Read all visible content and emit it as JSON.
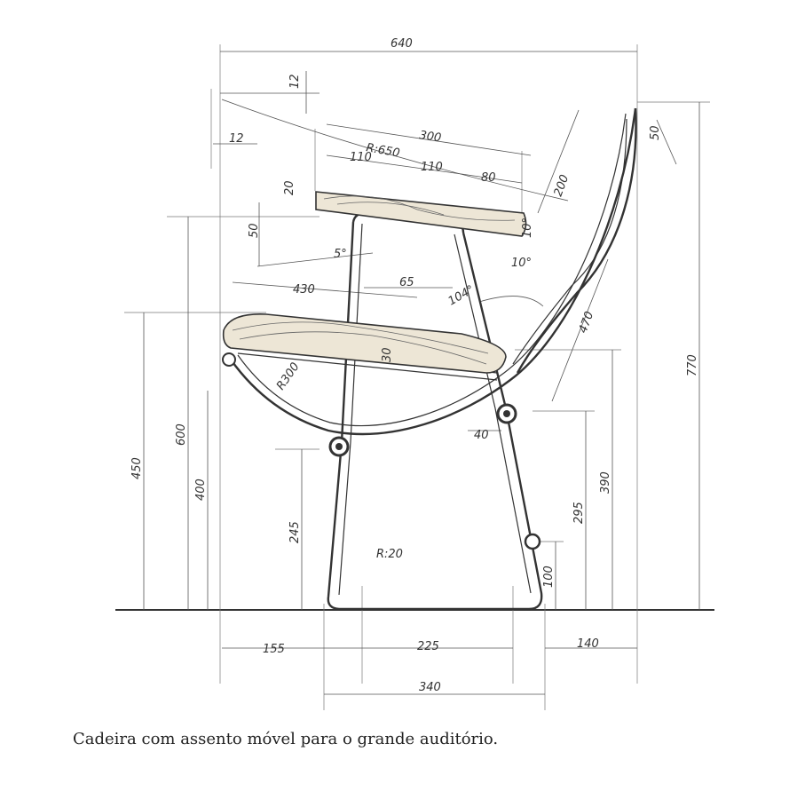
{
  "caption": "Cadeira com assento móvel para o grande auditório.",
  "dimensions": {
    "overall_width": "640",
    "top_offset": "12",
    "left_offset": "12",
    "radius_650": "R:650",
    "arm_length": "300",
    "arm_seg_a": "110",
    "arm_seg_b": "110",
    "arm_seg_c": "80",
    "arm_thickness": "20",
    "arm_angle": "10°",
    "back_top": "50",
    "back_upper": "200",
    "arm_gap": "50",
    "angle_5": "5°",
    "angle_10": "10°",
    "seat_depth": "430",
    "seat_inner": "65",
    "angle_104": "104°",
    "back_length": "470",
    "radius_300": "R300",
    "seat_thickness": "30",
    "foot_gap": "40",
    "total_height": "770",
    "arm_height": "600",
    "seat_height": "450",
    "seat_low": "400",
    "pivot_height": "245",
    "rear_height": "390",
    "rear_low": "295",
    "bar_height": "100",
    "radius_20": "R:20",
    "front_offset": "155",
    "base_inner": "225",
    "rear_offset": "140",
    "base_outer": "340"
  }
}
